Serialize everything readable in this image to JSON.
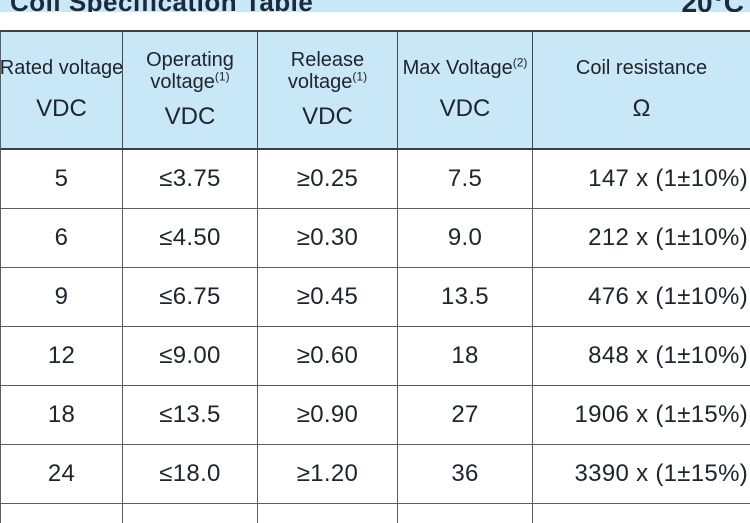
{
  "title": {
    "left": "Coil Specification Table",
    "right": "20°C"
  },
  "table": {
    "columns": [
      {
        "line1": "Rated voltage",
        "line1_sup": "",
        "line2": "",
        "line2_sup": "",
        "unit": "VDC"
      },
      {
        "line1": "Operating",
        "line1_sup": "",
        "line2": "voltage",
        "line2_sup": "(1)",
        "unit": "VDC"
      },
      {
        "line1": "Release",
        "line1_sup": "",
        "line2": "voltage",
        "line2_sup": "(1)",
        "unit": "VDC"
      },
      {
        "line1": "Max Voltage",
        "line1_sup": "(2)",
        "line2": "",
        "line2_sup": "",
        "unit": "VDC"
      },
      {
        "line1": "Coil resistance",
        "line1_sup": "",
        "line2": "",
        "line2_sup": "",
        "unit": "Ω"
      }
    ],
    "rows": [
      {
        "rated": "5",
        "operating": "≤3.75",
        "release": "≥0.25",
        "max": "7.5",
        "resistance": "147 x (1±10%)"
      },
      {
        "rated": "6",
        "operating": "≤4.50",
        "release": "≥0.30",
        "max": "9.0",
        "resistance": "212 x (1±10%)"
      },
      {
        "rated": "9",
        "operating": "≤6.75",
        "release": "≥0.45",
        "max": "13.5",
        "resistance": "476 x (1±10%)"
      },
      {
        "rated": "12",
        "operating": "≤9.00",
        "release": "≥0.60",
        "max": "18",
        "resistance": "848 x (1±10%)"
      },
      {
        "rated": "18",
        "operating": "≤13.5",
        "release": "≥0.90",
        "max": "27",
        "resistance": "1906 x (1±15%)"
      },
      {
        "rated": "24",
        "operating": "≤18.0",
        "release": "≥1.20",
        "max": "36",
        "resistance": "3390 x (1±15%)"
      }
    ]
  },
  "colors": {
    "header_bg": "#c9e8f7",
    "text": "#20242c",
    "border_dark": "#3d3f41",
    "border_light": "#5c5f61"
  }
}
